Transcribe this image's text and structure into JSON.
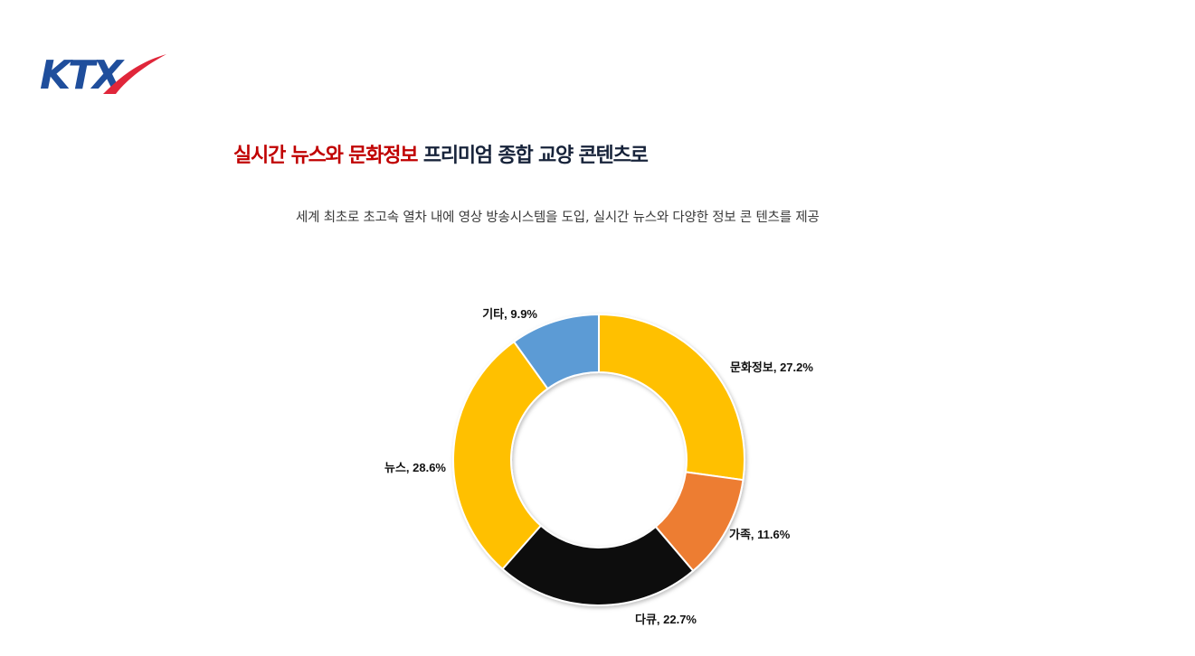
{
  "brand": {
    "logo_text": "KTX",
    "logo_blue": "#1f4e9c",
    "logo_red": "#e0263a"
  },
  "headline": {
    "highlight_1": "실시간 뉴스와",
    "highlight_2": "문화정보",
    "rest": "프리미엄 종합 교양 콘텐츠로",
    "highlight_color": "#c00000",
    "text_color": "#17233a"
  },
  "subtitle": "세계 최초로  초고속  열차 내에  영상 방송시스템을 도입,  실시간 뉴스와  다양한  정보 콘 텐츠를 제공",
  "chart_data": {
    "type": "pie",
    "donut": true,
    "start_angle_deg": 0,
    "direction": "clockwise",
    "slices": [
      {
        "label": "문화정보",
        "value": 27.2,
        "display": "문화정보, 27.2%",
        "color": "#ffc000"
      },
      {
        "label": "가족",
        "value": 11.6,
        "display": "가족, 11.6%",
        "color": "#ed7d31"
      },
      {
        "label": "다큐",
        "value": 22.7,
        "display": "다큐, 22.7%",
        "color": "#0d0d0d"
      },
      {
        "label": "뉴스",
        "value": 28.6,
        "display": "뉴스, 28.6%",
        "color": "#ffc000"
      },
      {
        "label": "기타",
        "value": 9.9,
        "display": "기타, 9.9%",
        "color": "#5b9bd5"
      }
    ]
  }
}
